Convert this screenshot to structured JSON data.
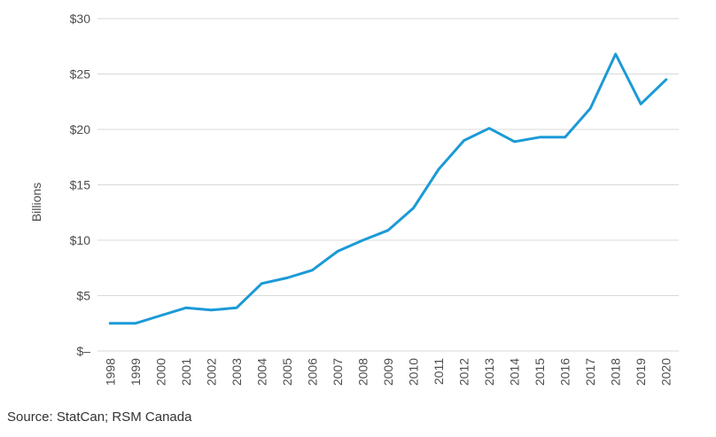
{
  "chart_data": {
    "type": "line",
    "title": "",
    "xlabel": "",
    "ylabel": "Billions",
    "x": [
      "1998",
      "1999",
      "2000",
      "2001",
      "2002",
      "2003",
      "2004",
      "2005",
      "2006",
      "2007",
      "2008",
      "2009",
      "2010",
      "2011",
      "2012",
      "2013",
      "2014",
      "2015",
      "2016",
      "2017",
      "2018",
      "2019",
      "2020"
    ],
    "series": [
      {
        "values": [
          2.5,
          2.5,
          3.2,
          3.9,
          3.7,
          3.9,
          6.1,
          6.6,
          7.3,
          9.0,
          10.0,
          10.9,
          12.9,
          16.4,
          19.0,
          20.1,
          18.9,
          19.3,
          19.3,
          21.9,
          26.8,
          22.3,
          24.5
        ]
      }
    ],
    "ylim": [
      0,
      30
    ],
    "yticks": [
      0,
      5,
      10,
      15,
      20,
      25,
      30
    ],
    "ytick_labels": [
      "$–",
      "$5",
      "$10",
      "$15",
      "$20",
      "$25",
      "$30"
    ],
    "grid": true,
    "line_color": "#1b9ad6"
  },
  "source": "Source: StatCan; RSM Canada"
}
